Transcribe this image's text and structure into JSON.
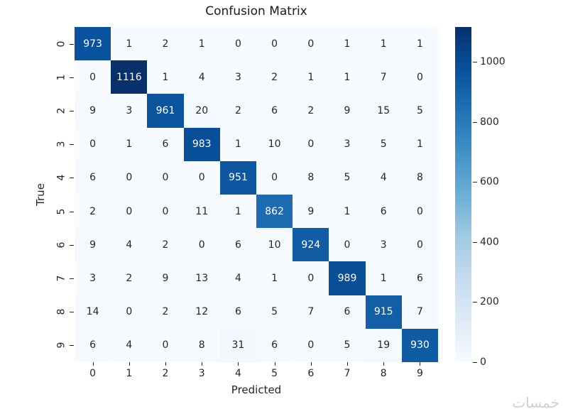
{
  "chart_data": {
    "type": "heatmap",
    "title": "Confusion Matrix",
    "xlabel": "Predicted",
    "ylabel": "True",
    "x_tick_labels": [
      "0",
      "1",
      "2",
      "3",
      "4",
      "5",
      "6",
      "7",
      "8",
      "9"
    ],
    "y_tick_labels": [
      "0",
      "1",
      "2",
      "3",
      "4",
      "5",
      "6",
      "7",
      "8",
      "9"
    ],
    "colormap": "Blues",
    "vmin": 0,
    "vmax": 1116,
    "colorbar_ticks": [
      0,
      200,
      400,
      600,
      800,
      1000
    ],
    "colorbar_position": "right",
    "grid": false,
    "matrix": [
      [
        973,
        1,
        2,
        1,
        0,
        0,
        0,
        1,
        1,
        1
      ],
      [
        0,
        1116,
        1,
        4,
        3,
        2,
        1,
        1,
        7,
        0
      ],
      [
        9,
        3,
        961,
        20,
        2,
        6,
        2,
        9,
        15,
        5
      ],
      [
        0,
        1,
        6,
        983,
        1,
        10,
        0,
        3,
        5,
        1
      ],
      [
        6,
        0,
        0,
        0,
        951,
        0,
        8,
        5,
        4,
        8
      ],
      [
        2,
        0,
        0,
        11,
        1,
        862,
        9,
        1,
        6,
        0
      ],
      [
        9,
        4,
        2,
        0,
        6,
        10,
        924,
        0,
        3,
        0
      ],
      [
        3,
        2,
        9,
        13,
        4,
        1,
        0,
        989,
        1,
        6
      ],
      [
        14,
        0,
        2,
        12,
        6,
        5,
        7,
        6,
        915,
        7
      ],
      [
        6,
        4,
        0,
        8,
        31,
        6,
        0,
        5,
        19,
        930
      ]
    ]
  },
  "watermark": "خمسات",
  "accent_colors": {
    "diag_dark": "#08306b",
    "cell_light": "#f7fbff",
    "text_dark": "#262626",
    "text_light": "#ffffff"
  }
}
